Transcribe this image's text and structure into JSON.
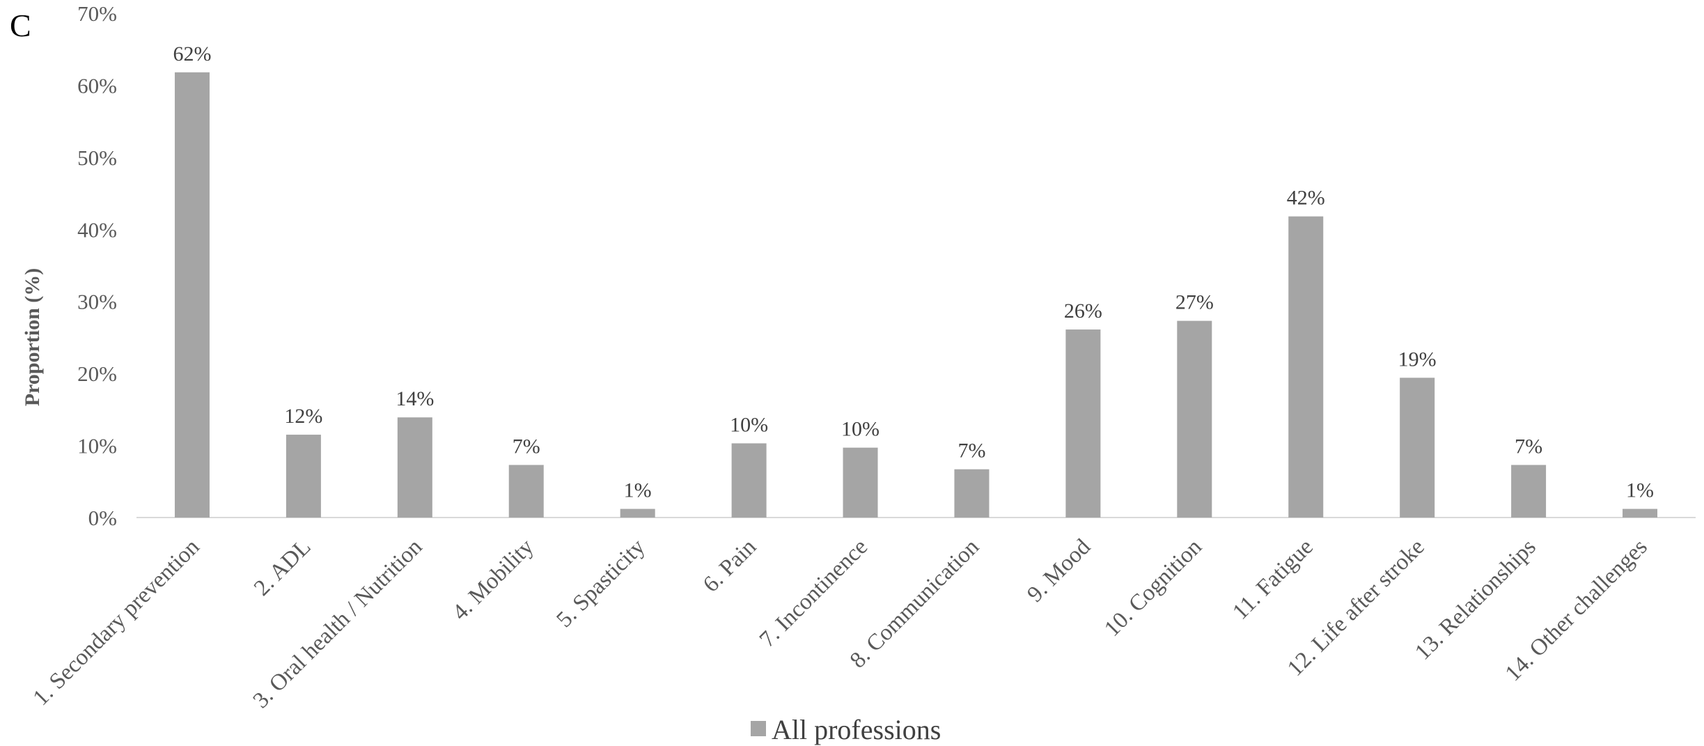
{
  "panel_letter": "C",
  "chart_data": {
    "type": "bar",
    "title": "",
    "xlabel": "",
    "ylabel": "Proportion (%)",
    "ylim": [
      0,
      70
    ],
    "yticks": [
      0,
      10,
      20,
      30,
      40,
      50,
      60,
      70
    ],
    "ytick_labels": [
      "0%",
      "10%",
      "20%",
      "30%",
      "40%",
      "50%",
      "60%",
      "70%"
    ],
    "categories": [
      "1. Secondary prevention",
      "2. ADL",
      "3. Oral health / Nutrition",
      "4. Mobility",
      "5. Spasticity",
      "6. Pain",
      "7. Incontinence",
      "8. Communication",
      "9. Mood",
      "10. Cognition",
      "11. Fatigue",
      "12. Life after stroke",
      "13. Relationships",
      "14. Other challenges"
    ],
    "series": [
      {
        "name": "All professions",
        "color": "#a5a5a5",
        "values": [
          61.8,
          11.5,
          13.9,
          7.3,
          1.2,
          10.3,
          9.7,
          6.7,
          26.1,
          27.3,
          41.8,
          19.4,
          7.3,
          1.2
        ],
        "data_labels": [
          "62%",
          "12%",
          "14%",
          "7%",
          "1%",
          "10%",
          "10%",
          "7%",
          "26%",
          "27%",
          "42%",
          "19%",
          "7%",
          "1%"
        ]
      }
    ],
    "grid": false,
    "legend": "bottom-center"
  }
}
